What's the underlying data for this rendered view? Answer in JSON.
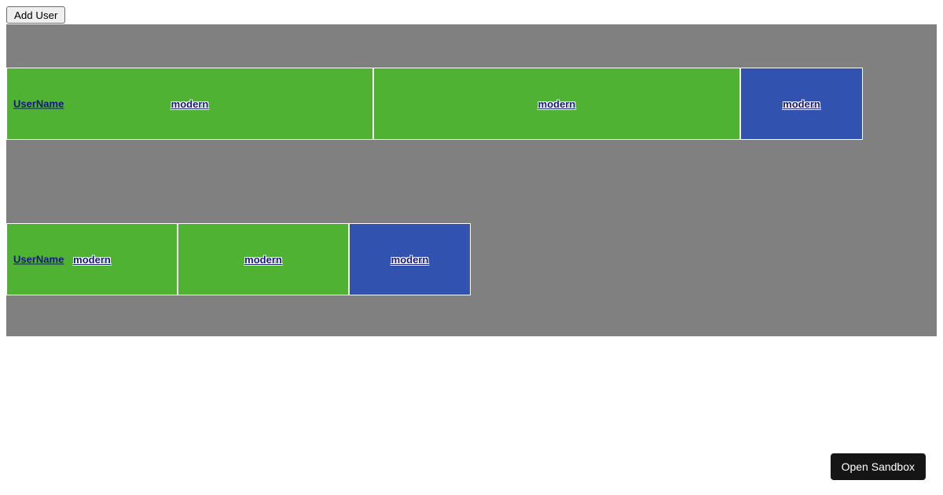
{
  "toolbar": {
    "add_user_label": "Add User"
  },
  "users": {
    "rows": [
      {
        "cells": [
          {
            "variant": "green",
            "username": "UserName",
            "link": "modern"
          },
          {
            "variant": "green",
            "link": "modern"
          },
          {
            "variant": "blue",
            "link": "modern"
          }
        ]
      },
      {
        "cells": [
          {
            "variant": "green",
            "username": "UserName",
            "link": "modern"
          },
          {
            "variant": "green",
            "link": "modern"
          },
          {
            "variant": "blue",
            "link": "modern"
          }
        ]
      }
    ]
  },
  "sandbox": {
    "open_label": "Open Sandbox"
  },
  "colors": {
    "panel_gray": "#808080",
    "cell_green": "#4fb232",
    "cell_blue": "#3152ae",
    "link_navy": "#16167f",
    "cell_border": "#ffffff",
    "sandbox_button_bg": "#151515"
  }
}
